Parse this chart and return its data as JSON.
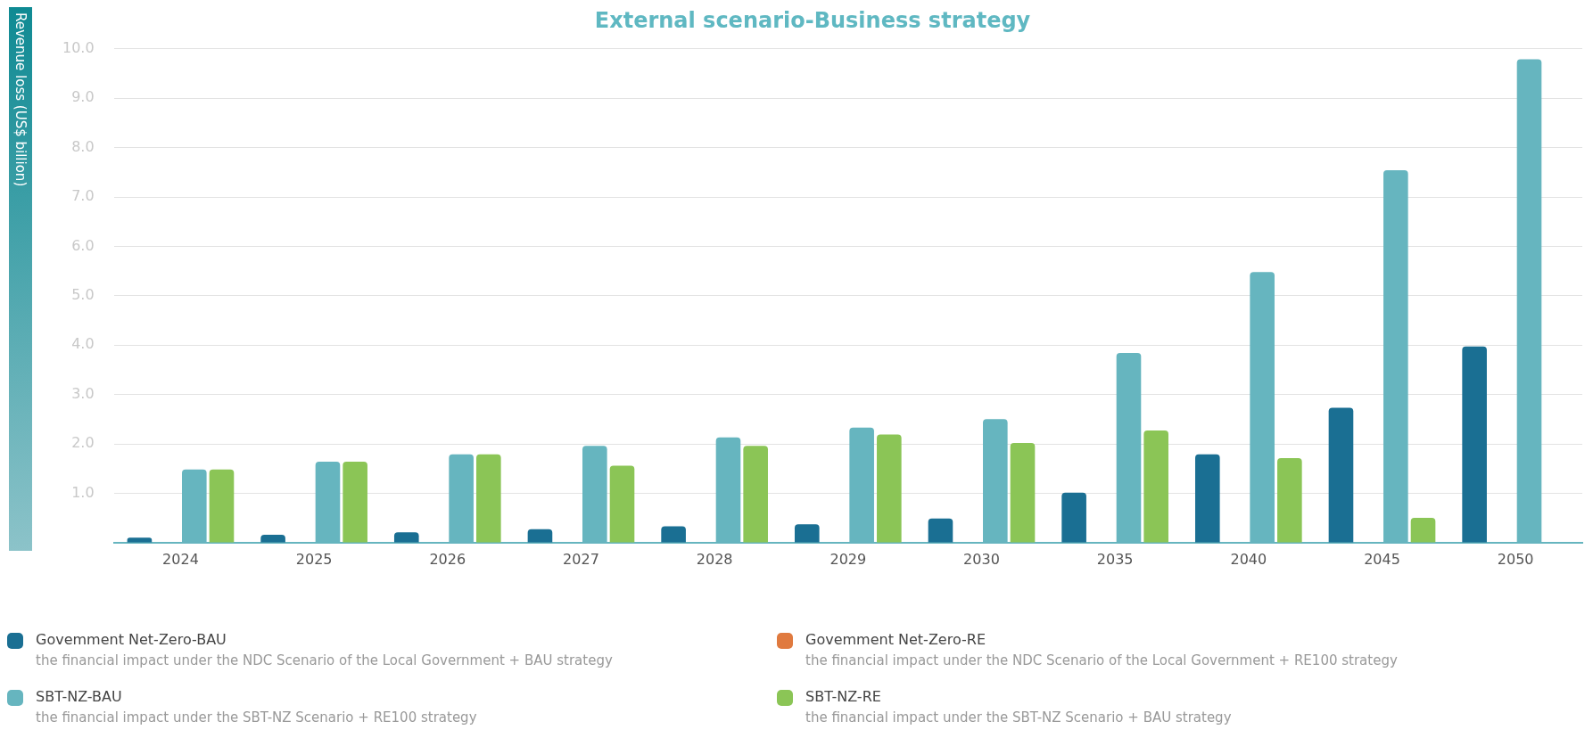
{
  "chart_data": {
    "type": "bar",
    "title": "External scenario-Business strategy",
    "ylabel": "Revenue loss (US$ billion)",
    "categories": [
      "2024",
      "2025",
      "2026",
      "2027",
      "2028",
      "2029",
      "2030",
      "2035",
      "2040",
      "2045",
      "2050"
    ],
    "series": [
      {
        "name": "Govemment Net-Zero-BAU",
        "color": "#1a6f93",
        "values": [
          0.1,
          0.16,
          0.21,
          0.27,
          0.33,
          0.37,
          0.49,
          1.01,
          1.79,
          2.73,
          3.97
        ]
      },
      {
        "name": "Govemment Net-Zero-RE",
        "color": "#e07a3f",
        "values": [
          null,
          null,
          null,
          null,
          null,
          null,
          null,
          null,
          null,
          null,
          null
        ]
      },
      {
        "name": "SBT-NZ-BAU",
        "color": "#66b5bf",
        "values": [
          1.48,
          1.64,
          1.79,
          1.96,
          2.13,
          2.33,
          2.5,
          3.84,
          5.48,
          7.54,
          9.79
        ]
      },
      {
        "name": "SBT-NZ-RE",
        "color": "#8bc556",
        "values": [
          1.48,
          1.64,
          1.79,
          1.56,
          1.96,
          2.19,
          2.02,
          2.27,
          1.71,
          0.5,
          null
        ]
      }
    ],
    "ylim": [
      0,
      10
    ],
    "yticks": [
      {
        "value": 1,
        "label": "1.0"
      },
      {
        "value": 2,
        "label": "2.0"
      },
      {
        "value": 3,
        "label": "3.0"
      },
      {
        "value": 4,
        "label": "4.0"
      },
      {
        "value": 5,
        "label": "5.0"
      },
      {
        "value": 6,
        "label": "6.0"
      },
      {
        "value": 7,
        "label": "7.0"
      },
      {
        "value": 8,
        "label": "8.0"
      },
      {
        "value": 9,
        "label": "9.0"
      },
      {
        "value": 10,
        "label": "10.0"
      }
    ],
    "grid": "y",
    "legend": "bottom",
    "annotations": [
      "the financial impact under the NDC Scenario of the Local Government + BAU strategy",
      "the financial impact under the NDC Scenario of the Local Government + RE100 strategy",
      "the financial impact under the SBT-NZ Scenario + RE100 strategy",
      "the financial impact under the SBT-NZ Scenario + BAU strategy"
    ]
  }
}
